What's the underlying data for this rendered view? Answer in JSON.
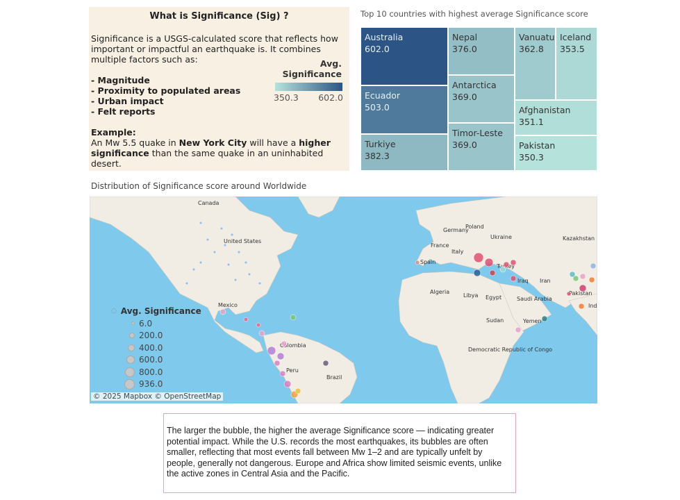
{
  "info": {
    "title": "What is Significance (Sig) ?",
    "intro": "Significance is a USGS-calculated score that reflects how important or impactful an earthquake is. It combines multiple factors such as:",
    "factors": [
      "- Magnitude",
      "- Proximity to populated areas",
      "- Urban impact",
      "- Felt reports"
    ],
    "example_label": "Example:",
    "example_pre": "An Mw 5.5 quake in ",
    "example_city": "New York City",
    "example_mid": " will have a ",
    "example_bold": "higher significance",
    "example_post": " than the same quake in an uninhabited desert."
  },
  "color_legend": {
    "title": "Avg. Significance",
    "min": "350.3",
    "max": "602.0",
    "color_low": "#b6e2dc",
    "color_high": "#2c5586"
  },
  "chart_data": [
    {
      "type": "treemap",
      "title": "Top 10 countries with highest average Significance score",
      "categories": [
        "Australia",
        "Ecuador",
        "Turkiye",
        "Nepal",
        "Antarctica",
        "Timor-Leste",
        "Vanuatu",
        "Iceland",
        "Afghanistan",
        "Pakistan"
      ],
      "values": [
        602.0,
        503.0,
        382.3,
        376.0,
        369.0,
        369.0,
        362.8,
        353.5,
        351.1,
        350.3
      ],
      "labels": [
        "602.0",
        "503.0",
        "382.3",
        "376.0",
        "369.0",
        "369.0",
        "362.8",
        "353.5",
        "351.1",
        "350.3"
      ]
    },
    {
      "type": "scatter",
      "title": "Distribution of Significance score around Worldwide",
      "size_legend": {
        "title": "Avg. Significance",
        "values": [
          "6.0",
          "200.0",
          "400.0",
          "600.0",
          "800.0",
          "936.0"
        ]
      },
      "map_labels": [
        "Canada",
        "United States",
        "Mexico",
        "Colombia",
        "Peru",
        "Brazil",
        "Spain",
        "France",
        "Germany",
        "Poland",
        "Ukraine",
        "Italy",
        "Turkey",
        "Iraq",
        "Iran",
        "Kazakhstan",
        "Algeria",
        "Libya",
        "Egypt",
        "Saudi Arabia",
        "Yemen",
        "Sudan",
        "Democratic Republic of Congo",
        "Pakistan",
        "Ind"
      ],
      "attribution": "© 2025 Mapbox © OpenStreetMap"
    }
  ],
  "note": "The larger the bubble, the higher the average Significance score — indicating greater potential impact. While the U.S. records the most earthquakes, its bubbles are often smaller, reflecting that most events fall between Mw 1–2 and are typically unfelt by people, generally not dangerous. Europe and Africa show limited seismic events, unlike the active zones in Central Asia and the Pacific."
}
